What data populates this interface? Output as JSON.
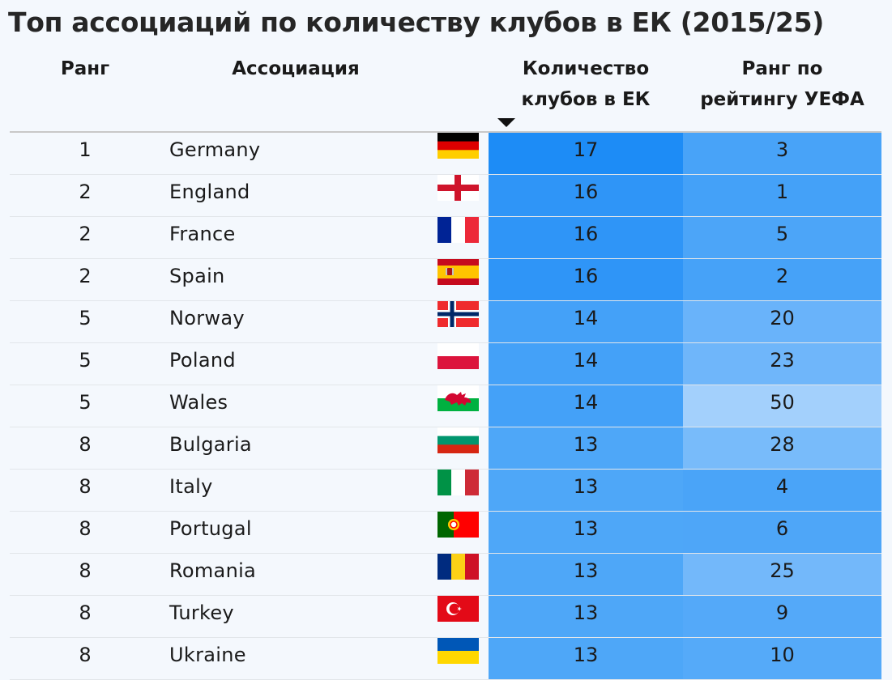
{
  "title": "Топ ассоциаций по количеству клубов в ЕК (2015/25)",
  "headers": {
    "rank": "Ранг",
    "association": "Ассоциация",
    "clubs_line1": "Количество",
    "clubs_line2": "клубов в ЕК",
    "uefa_line1": "Ранг по",
    "uefa_line2": "рейтингу УЕФА"
  },
  "colors": {
    "clubs_17": "#1d8cf6",
    "clubs_16": "#2f95f7",
    "clubs_14": "#44a1f8",
    "clubs_13": "#4ea7f8",
    "uefa_base": "#44a1f8"
  },
  "chart_data": {
    "type": "table",
    "title": "Топ ассоциаций по количеству клубов в ЕК (2015/25)",
    "columns": [
      "Ранг",
      "Ассоциация",
      "Количество клубов в ЕК",
      "Ранг по рейтингу УЕФА"
    ],
    "sorted_by": "Количество клубов в ЕК",
    "rows": [
      {
        "rank": "1",
        "association": "Germany",
        "flag": "germany-flag-icon",
        "clubs": 17,
        "uefa_rank": 3
      },
      {
        "rank": "2",
        "association": "England",
        "flag": "england-flag-icon",
        "clubs": 16,
        "uefa_rank": 1
      },
      {
        "rank": "2",
        "association": "France",
        "flag": "france-flag-icon",
        "clubs": 16,
        "uefa_rank": 5
      },
      {
        "rank": "2",
        "association": "Spain",
        "flag": "spain-flag-icon",
        "clubs": 16,
        "uefa_rank": 2
      },
      {
        "rank": "5",
        "association": "Norway",
        "flag": "norway-flag-icon",
        "clubs": 14,
        "uefa_rank": 20
      },
      {
        "rank": "5",
        "association": "Poland",
        "flag": "poland-flag-icon",
        "clubs": 14,
        "uefa_rank": 23
      },
      {
        "rank": "5",
        "association": "Wales",
        "flag": "wales-flag-icon",
        "clubs": 14,
        "uefa_rank": 50
      },
      {
        "rank": "8",
        "association": "Bulgaria",
        "flag": "bulgaria-flag-icon",
        "clubs": 13,
        "uefa_rank": 28
      },
      {
        "rank": "8",
        "association": "Italy",
        "flag": "italy-flag-icon",
        "clubs": 13,
        "uefa_rank": 4
      },
      {
        "rank": "8",
        "association": "Portugal",
        "flag": "portugal-flag-icon",
        "clubs": 13,
        "uefa_rank": 6
      },
      {
        "rank": "8",
        "association": "Romania",
        "flag": "romania-flag-icon",
        "clubs": 13,
        "uefa_rank": 25
      },
      {
        "rank": "8",
        "association": "Turkey",
        "flag": "turkey-flag-icon",
        "clubs": 13,
        "uefa_rank": 9
      },
      {
        "rank": "8",
        "association": "Ukraine",
        "flag": "ukraine-flag-icon",
        "clubs": 13,
        "uefa_rank": 10
      }
    ]
  }
}
